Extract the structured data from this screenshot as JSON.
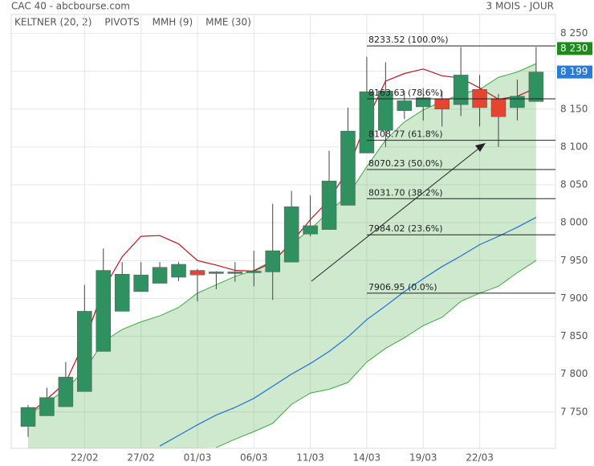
{
  "chart_data": {
    "type": "candlestick",
    "title": "CAC 40 - abcbourse.com",
    "period": "3 MOIS - JOUR",
    "categories": [
      null,
      null,
      null,
      "22/02",
      null,
      null,
      "27/02",
      null,
      null,
      "01/03",
      null,
      null,
      "06/03",
      null,
      null,
      "11/03",
      null,
      null,
      "14/03",
      null,
      null,
      "19/03",
      null,
      null,
      "22/03",
      null,
      null,
      null
    ],
    "open": [
      7731,
      7745,
      7757,
      7777,
      7830,
      7883,
      7909,
      7920,
      7928,
      7937,
      7933,
      7934,
      7934,
      7935,
      7948,
      7985,
      7991,
      8023,
      8092,
      8122,
      8148,
      8153,
      8163,
      8156,
      8176,
      8163,
      8152,
      8160
    ],
    "high": [
      7759,
      7782,
      7816,
      7918,
      7966,
      7948,
      7948,
      7948,
      7948,
      7939,
      7936,
      7948,
      7963,
      8025,
      8042,
      8036,
      8095,
      8152,
      8219,
      8212,
      8174,
      8178,
      8174,
      8232,
      8195,
      8170,
      8189,
      8232
    ],
    "low": [
      7717,
      7745,
      7757,
      7777,
      7830,
      7883,
      7909,
      7920,
      7923,
      7896,
      7912,
      7922,
      7916,
      7898,
      7948,
      7982,
      7991,
      8023,
      8092,
      8100,
      8137,
      8135,
      8127,
      8141,
      8127,
      8100,
      8135,
      8160
    ],
    "close": [
      7756,
      7769,
      7796,
      7883,
      7937,
      7932,
      7931,
      7941,
      7945,
      7931,
      7935,
      7935,
      7936,
      7963,
      8021,
      7996,
      8055,
      8121,
      8173,
      8174,
      8161,
      8165,
      8150,
      8195,
      8152,
      8140,
      8167,
      8199
    ],
    "up_color": "#2f9160",
    "down_color": "#e5452f",
    "keltner": {
      "name": "KELTNER (20, 2)",
      "color": "#3fa83f",
      "upper": [
        7746,
        7762,
        7780,
        7805,
        7843,
        7859,
        7869,
        7877,
        7888,
        7907,
        7918,
        7929,
        7937,
        7950,
        7972,
        7991,
        8015,
        8036,
        8074,
        8109,
        8133,
        8149,
        8160,
        8170,
        8176,
        8192,
        8199,
        8210
      ],
      "lower": [
        null,
        null,
        null,
        null,
        null,
        null,
        null,
        null,
        null,
        null,
        7703,
        7714,
        7724,
        7735,
        7760,
        7775,
        7780,
        7789,
        7816,
        7834,
        7848,
        7864,
        7875,
        7896,
        7907,
        7916,
        7934,
        7950
      ]
    },
    "pivots": {
      "name": "PIVOTS",
      "color": "#555555"
    },
    "series": [
      {
        "name": "MMH (9)",
        "color": "#c0141c",
        "values": [
          7746,
          7767,
          7789,
          7843,
          7912,
          7955,
          7982,
          7983,
          7972,
          7950,
          7944,
          7937,
          7936,
          7948,
          7974,
          8004,
          8030,
          8070,
          8135,
          8187,
          8197,
          8203,
          8194,
          8191,
          8178,
          8163,
          8167,
          8178
        ]
      },
      {
        "name": "MME (30)",
        "color": "#1f6fd0",
        "values": [
          null,
          null,
          null,
          null,
          null,
          null,
          null,
          7705,
          7719,
          7733,
          7746,
          7756,
          7768,
          7784,
          7800,
          7814,
          7830,
          7849,
          7872,
          7890,
          7909,
          7926,
          7942,
          7956,
          7971,
          7982,
          7994,
          8007
        ]
      }
    ],
    "fibonacci": [
      {
        "value": 8233.52,
        "label": "8233.52  (100.0%)"
      },
      {
        "value": 8163.63,
        "label": "8163.63  (78.6%)"
      },
      {
        "value": 8108.77,
        "label": "8108.77  (61.8%)"
      },
      {
        "value": 8070.23,
        "label": "8070.23  (50.0%)"
      },
      {
        "value": 8031.7,
        "label": "8031.70  (38.2%)"
      },
      {
        "value": 7984.02,
        "label": "7984.02  (23.6%)"
      },
      {
        "value": 7906.95,
        "label": "7906.95  (0.0%)"
      }
    ],
    "price_labels": [
      {
        "value": 8230,
        "label": "8 230",
        "color": "#1e8a1e"
      },
      {
        "value": 8199,
        "label": "8 199",
        "color": "#2a7bd6"
      }
    ],
    "ylim": [
      7702,
      8275
    ],
    "yticks": [
      {
        "value": 7750,
        "label": "7 750"
      },
      {
        "value": 7800,
        "label": "7 800"
      },
      {
        "value": 7850,
        "label": "7 850"
      },
      {
        "value": 7900,
        "label": "7 900"
      },
      {
        "value": 7950,
        "label": "7 950"
      },
      {
        "value": 8000,
        "label": "8 000"
      },
      {
        "value": 8050,
        "label": "8 050"
      },
      {
        "value": 8100,
        "label": "8 100"
      },
      {
        "value": 8150,
        "label": "8 150"
      },
      {
        "value": 8200,
        "label": "8 200"
      },
      {
        "value": 8250,
        "label": "8 250"
      }
    ],
    "grid": true
  }
}
